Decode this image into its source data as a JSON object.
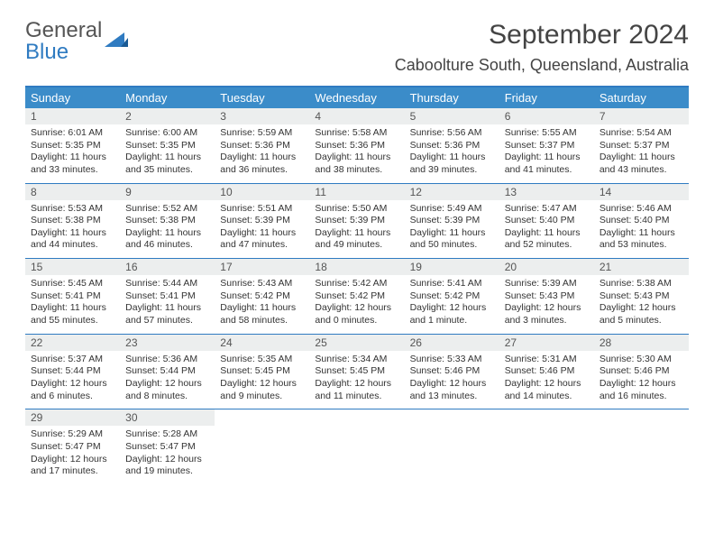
{
  "logo": {
    "text1": "General",
    "text2": "Blue"
  },
  "title": "September 2024",
  "location": "Caboolture South, Queensland, Australia",
  "weekdays": [
    "Sunday",
    "Monday",
    "Tuesday",
    "Wednesday",
    "Thursday",
    "Friday",
    "Saturday"
  ],
  "colors": {
    "header_bg": "#3b8cc9",
    "border": "#2f7bc1",
    "daynum_bg": "#eceeee"
  },
  "days": [
    {
      "n": 1,
      "sr": "6:01 AM",
      "ss": "5:35 PM",
      "dl": "11 hours and 33 minutes."
    },
    {
      "n": 2,
      "sr": "6:00 AM",
      "ss": "5:35 PM",
      "dl": "11 hours and 35 minutes."
    },
    {
      "n": 3,
      "sr": "5:59 AM",
      "ss": "5:36 PM",
      "dl": "11 hours and 36 minutes."
    },
    {
      "n": 4,
      "sr": "5:58 AM",
      "ss": "5:36 PM",
      "dl": "11 hours and 38 minutes."
    },
    {
      "n": 5,
      "sr": "5:56 AM",
      "ss": "5:36 PM",
      "dl": "11 hours and 39 minutes."
    },
    {
      "n": 6,
      "sr": "5:55 AM",
      "ss": "5:37 PM",
      "dl": "11 hours and 41 minutes."
    },
    {
      "n": 7,
      "sr": "5:54 AM",
      "ss": "5:37 PM",
      "dl": "11 hours and 43 minutes."
    },
    {
      "n": 8,
      "sr": "5:53 AM",
      "ss": "5:38 PM",
      "dl": "11 hours and 44 minutes."
    },
    {
      "n": 9,
      "sr": "5:52 AM",
      "ss": "5:38 PM",
      "dl": "11 hours and 46 minutes."
    },
    {
      "n": 10,
      "sr": "5:51 AM",
      "ss": "5:39 PM",
      "dl": "11 hours and 47 minutes."
    },
    {
      "n": 11,
      "sr": "5:50 AM",
      "ss": "5:39 PM",
      "dl": "11 hours and 49 minutes."
    },
    {
      "n": 12,
      "sr": "5:49 AM",
      "ss": "5:39 PM",
      "dl": "11 hours and 50 minutes."
    },
    {
      "n": 13,
      "sr": "5:47 AM",
      "ss": "5:40 PM",
      "dl": "11 hours and 52 minutes."
    },
    {
      "n": 14,
      "sr": "5:46 AM",
      "ss": "5:40 PM",
      "dl": "11 hours and 53 minutes."
    },
    {
      "n": 15,
      "sr": "5:45 AM",
      "ss": "5:41 PM",
      "dl": "11 hours and 55 minutes."
    },
    {
      "n": 16,
      "sr": "5:44 AM",
      "ss": "5:41 PM",
      "dl": "11 hours and 57 minutes."
    },
    {
      "n": 17,
      "sr": "5:43 AM",
      "ss": "5:42 PM",
      "dl": "11 hours and 58 minutes."
    },
    {
      "n": 18,
      "sr": "5:42 AM",
      "ss": "5:42 PM",
      "dl": "12 hours and 0 minutes."
    },
    {
      "n": 19,
      "sr": "5:41 AM",
      "ss": "5:42 PM",
      "dl": "12 hours and 1 minute."
    },
    {
      "n": 20,
      "sr": "5:39 AM",
      "ss": "5:43 PM",
      "dl": "12 hours and 3 minutes."
    },
    {
      "n": 21,
      "sr": "5:38 AM",
      "ss": "5:43 PM",
      "dl": "12 hours and 5 minutes."
    },
    {
      "n": 22,
      "sr": "5:37 AM",
      "ss": "5:44 PM",
      "dl": "12 hours and 6 minutes."
    },
    {
      "n": 23,
      "sr": "5:36 AM",
      "ss": "5:44 PM",
      "dl": "12 hours and 8 minutes."
    },
    {
      "n": 24,
      "sr": "5:35 AM",
      "ss": "5:45 PM",
      "dl": "12 hours and 9 minutes."
    },
    {
      "n": 25,
      "sr": "5:34 AM",
      "ss": "5:45 PM",
      "dl": "12 hours and 11 minutes."
    },
    {
      "n": 26,
      "sr": "5:33 AM",
      "ss": "5:46 PM",
      "dl": "12 hours and 13 minutes."
    },
    {
      "n": 27,
      "sr": "5:31 AM",
      "ss": "5:46 PM",
      "dl": "12 hours and 14 minutes."
    },
    {
      "n": 28,
      "sr": "5:30 AM",
      "ss": "5:46 PM",
      "dl": "12 hours and 16 minutes."
    },
    {
      "n": 29,
      "sr": "5:29 AM",
      "ss": "5:47 PM",
      "dl": "12 hours and 17 minutes."
    },
    {
      "n": 30,
      "sr": "5:28 AM",
      "ss": "5:47 PM",
      "dl": "12 hours and 19 minutes."
    }
  ],
  "labels": {
    "sunrise": "Sunrise:",
    "sunset": "Sunset:",
    "daylight": "Daylight:"
  }
}
